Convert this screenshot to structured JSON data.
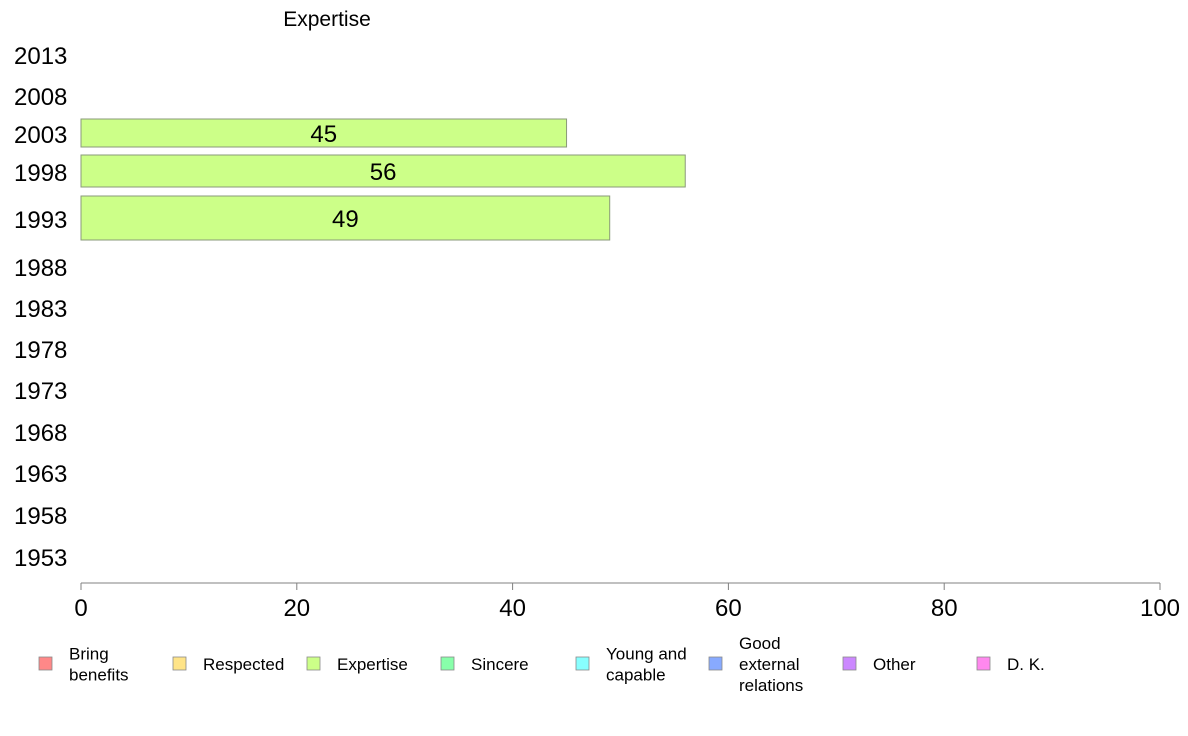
{
  "chart_data": {
    "type": "bar",
    "orientation": "horizontal",
    "title": "Expertise",
    "categories": [
      "2013",
      "2008",
      "2003",
      "1998",
      "1993",
      "1988",
      "1983",
      "1978",
      "1973",
      "1968",
      "1963",
      "1958",
      "1953"
    ],
    "series": [
      {
        "name": "Expertise",
        "color": "#ccff88",
        "values": [
          null,
          null,
          45,
          56,
          49,
          null,
          null,
          null,
          null,
          null,
          null,
          null,
          null
        ]
      }
    ],
    "xlim": [
      0,
      100
    ],
    "xticks": [
      0,
      20,
      40,
      60,
      80,
      100
    ],
    "grid": false,
    "legend": {
      "placement": "bottom",
      "items": [
        {
          "label": "Bring benefits",
          "color": "#ff8888"
        },
        {
          "label": "Respected",
          "color": "#ffe488"
        },
        {
          "label": "Expertise",
          "color": "#ccff88"
        },
        {
          "label": "Sincere",
          "color": "#88ffaa"
        },
        {
          "label": "Young and capable",
          "color": "#88ffff"
        },
        {
          "label": "Good external relations",
          "color": "#88aaff"
        },
        {
          "label": "Other",
          "color": "#cc88ff"
        },
        {
          "label": "D. K.",
          "color": "#ff88ee"
        }
      ]
    },
    "colors": {
      "axis": "#808080",
      "bar_border": "#8a9a7a"
    }
  }
}
